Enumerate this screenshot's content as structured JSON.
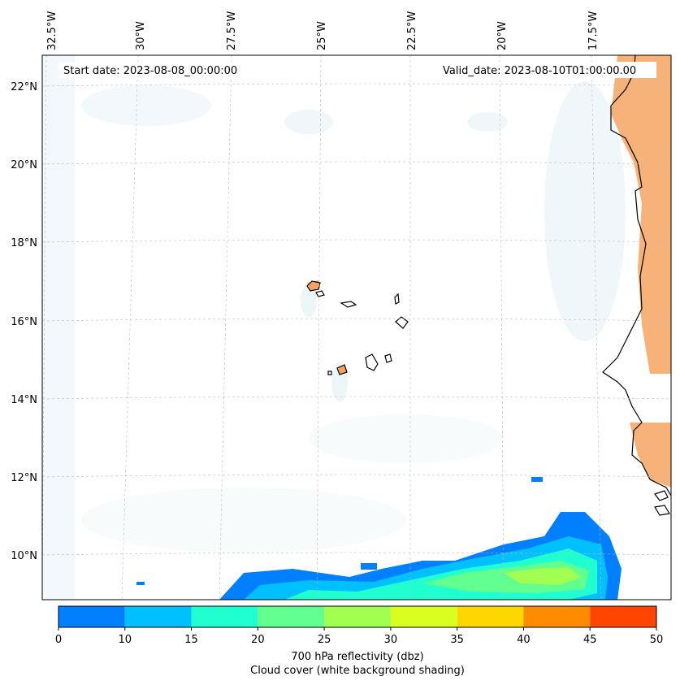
{
  "map": {
    "start_date": "Start date: 2023-08-08_00:00:00",
    "valid_date": "Valid_date: 2023-08-10T01:00:00.00",
    "lon_labels": [
      "32.5°W",
      "30°W",
      "27.5°W",
      "25°W",
      "22.5°W",
      "20°W",
      "17.5°W"
    ],
    "lat_labels": [
      "22°N",
      "20°N",
      "18°N",
      "16°N",
      "14°N",
      "12°N",
      "10°N"
    ]
  },
  "colorbar": {
    "colors": [
      "#0080ff",
      "#00c0ff",
      "#20ffd0",
      "#60ff90",
      "#a0ff50",
      "#d8ff20",
      "#ffd700",
      "#ff8c00",
      "#ff4500"
    ],
    "ticks": [
      "0",
      "10",
      "15",
      "20",
      "25",
      "30",
      "35",
      "40",
      "45",
      "50"
    ],
    "label_line1": "700 hPa reflectivity (dbz)",
    "label_line2": "Cloud cover (white background shading)"
  },
  "colors": {
    "cloud": "#cfe8f0",
    "land": "#f4a460",
    "coast": "#000000",
    "grid": "#bbbbbb"
  }
}
